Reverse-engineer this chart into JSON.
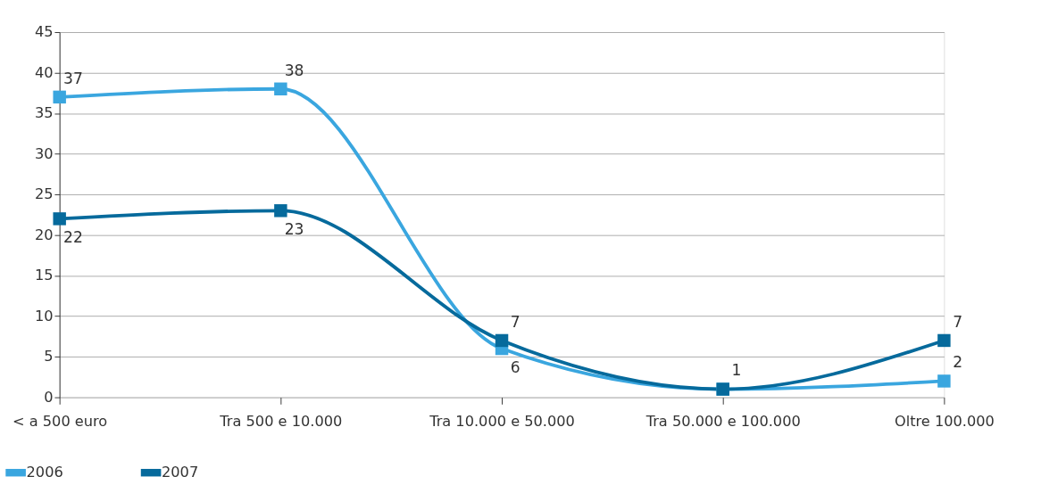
{
  "chart_data": {
    "type": "line",
    "categories": [
      "< a 500 euro",
      "Tra 500 e 10.000",
      "Tra 10.000 e 50.000",
      "Tra 50.000 e 100.000",
      "Oltre 100.000"
    ],
    "series": [
      {
        "name": "2006",
        "color": "#3aa6df",
        "values": [
          37,
          38,
          6,
          1,
          2
        ],
        "value_labels": [
          "37",
          "38",
          "6",
          null,
          "2"
        ]
      },
      {
        "name": "2007",
        "color": "#066a9c",
        "values": [
          22,
          23,
          7,
          1,
          7
        ],
        "value_labels": [
          "22",
          "23",
          "7",
          "1",
          "7"
        ]
      }
    ],
    "ylim": [
      0,
      45
    ],
    "yticks": [
      0,
      5,
      10,
      15,
      20,
      25,
      30,
      35,
      40,
      45
    ],
    "grid": "y",
    "legend": "bottom left",
    "marker": "square",
    "line_style": "solid"
  }
}
